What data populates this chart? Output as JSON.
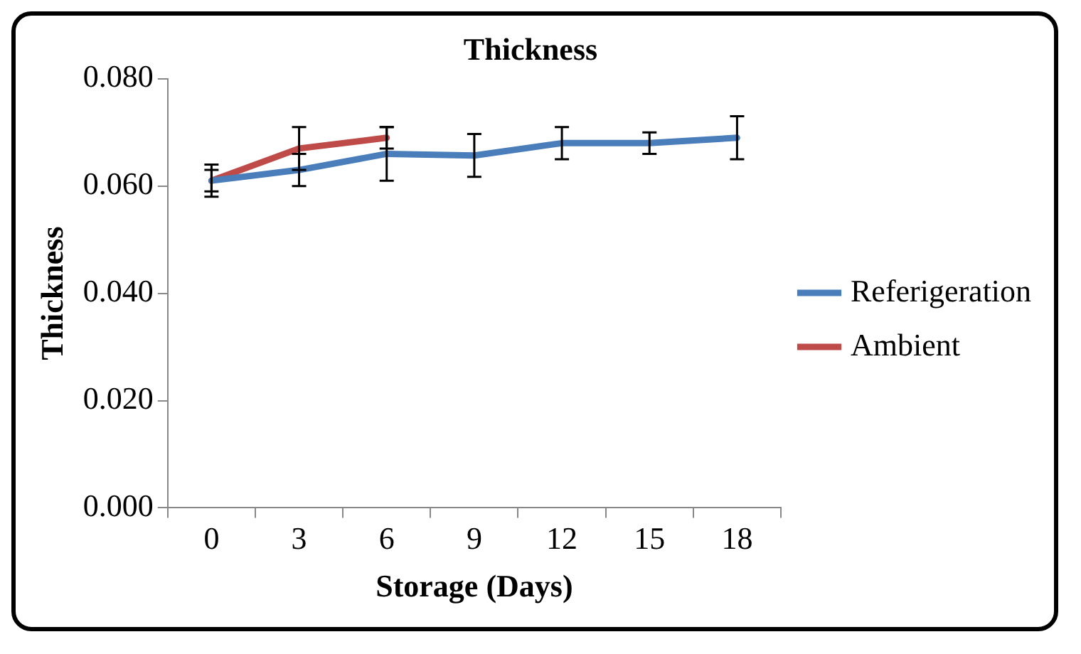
{
  "chart_data": {
    "type": "line",
    "title": "Thickness",
    "xlabel": "Storage (Days)",
    "ylabel": "Thickness",
    "categories": [
      "0",
      "3",
      "6",
      "9",
      "12",
      "15",
      "18"
    ],
    "series": [
      {
        "name": "Referigeration",
        "color": "#4a7ebb",
        "values": [
          0.061,
          0.063,
          0.066,
          0.0657,
          0.068,
          0.068,
          0.069
        ],
        "errors": [
          0.003,
          0.003,
          0.005,
          0.004,
          0.003,
          0.002,
          0.004
        ]
      },
      {
        "name": "Ambient",
        "color": "#be4b48",
        "values": [
          0.061,
          0.067,
          0.069,
          null,
          null,
          null,
          null
        ],
        "errors": [
          0.002,
          0.004,
          0.002,
          null,
          null,
          null,
          null
        ]
      }
    ],
    "ylim": [
      0,
      0.08
    ],
    "yticks": [
      {
        "value": 0,
        "label": "0.000"
      },
      {
        "value": 0.02,
        "label": "0.020"
      },
      {
        "value": 0.04,
        "label": "0.040"
      },
      {
        "value": 0.06,
        "label": "0.060"
      },
      {
        "value": 0.08,
        "label": "0.080"
      }
    ],
    "grid": false,
    "legend": "right",
    "marker": "none"
  }
}
